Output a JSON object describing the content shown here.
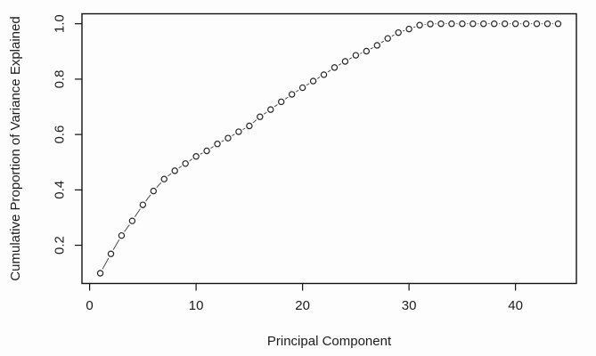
{
  "chart_data": {
    "type": "scatter",
    "title": "",
    "xlabel": "Principal Component",
    "ylabel": "Cumulative Proportion of Variance Explained",
    "marker": "open-circle",
    "line_style": "point-to-point segments with gaps (R type=b)",
    "grid": false,
    "legend": null,
    "point_color": "#242424",
    "segment_color": "#3a3a3a",
    "axis_color": "#111111",
    "background": "#fdfdfd",
    "x_ticks": [
      "0",
      "10",
      "20",
      "30",
      "40"
    ],
    "x_tick_values": [
      0,
      10,
      20,
      30,
      40
    ],
    "y_ticks": [
      "0.2",
      "0.4",
      "0.6",
      "0.8",
      "1.0"
    ],
    "y_tick_values": [
      0.2,
      0.4,
      0.6,
      0.8,
      1.0
    ],
    "xlim": [
      -0.72,
      45.72
    ],
    "ylim": [
      0.062,
      1.036
    ],
    "x": [
      1,
      2,
      3,
      4,
      5,
      6,
      7,
      8,
      9,
      10,
      11,
      12,
      13,
      14,
      15,
      16,
      17,
      18,
      19,
      20,
      21,
      22,
      23,
      24,
      25,
      26,
      27,
      28,
      29,
      30,
      31,
      32,
      33,
      34,
      35,
      36,
      37,
      38,
      39,
      40,
      41,
      42,
      43,
      44
    ],
    "y": [
      0.099,
      0.169,
      0.235,
      0.288,
      0.346,
      0.396,
      0.439,
      0.469,
      0.495,
      0.521,
      0.541,
      0.566,
      0.587,
      0.61,
      0.631,
      0.664,
      0.69,
      0.718,
      0.745,
      0.769,
      0.793,
      0.816,
      0.842,
      0.864,
      0.886,
      0.901,
      0.922,
      0.947,
      0.968,
      0.981,
      0.995,
      0.999,
      1.0,
      1.0,
      1.0,
      1.0,
      1.0,
      1.0,
      1.0,
      1.0,
      1.0,
      1.0,
      1.0,
      1.0
    ]
  }
}
